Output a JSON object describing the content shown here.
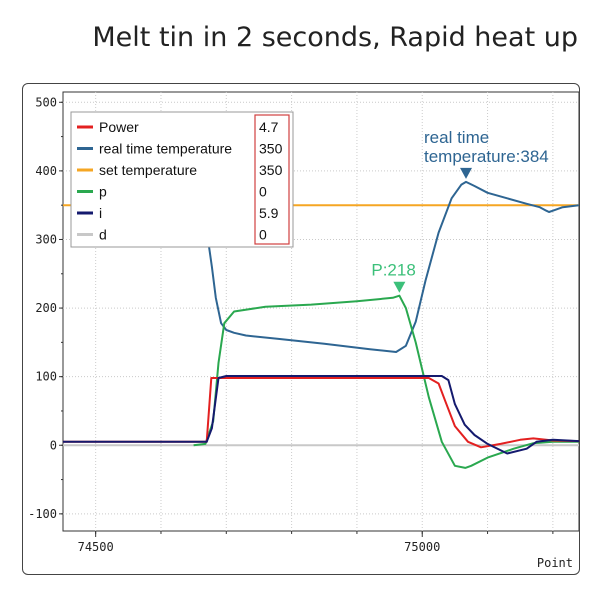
{
  "headline": "Melt tin in 2 seconds,  Rapid heat up",
  "chart_data": {
    "type": "line",
    "xlabel": "Point",
    "ylabel": "",
    "xlim": [
      74450,
      75240
    ],
    "ylim": [
      -125,
      515
    ],
    "x_ticks": [
      "74500",
      "75000"
    ],
    "y_ticks": [
      "500",
      "400",
      "300",
      "200",
      "100",
      "0",
      "-100"
    ],
    "grid": true,
    "legend_position": "top-left",
    "legend": [
      {
        "name": "Power",
        "value": "4.7",
        "color": "#e32020"
      },
      {
        "name": "real time temperature",
        "value": "350",
        "color": "#2e6592"
      },
      {
        "name": "set temperature",
        "value": "350",
        "color": "#f5a623"
      },
      {
        "name": "p",
        "value": "0",
        "color": "#2aa84f"
      },
      {
        "name": "i",
        "value": "5.9",
        "color": "#141a6e"
      },
      {
        "name": "d",
        "value": "0",
        "color": "#c8c8c8"
      }
    ],
    "annotations": [
      {
        "label_lines": [
          "real time",
          "temperature:384"
        ],
        "x": 75067,
        "y": 384,
        "color": "#2e6592"
      },
      {
        "label_lines": [
          "P:218"
        ],
        "x": 74965,
        "y": 218,
        "color": "#3cc07a"
      }
    ],
    "series": [
      {
        "name": "real time temperature",
        "color": "#2e6592",
        "x": [
          74672,
          74678,
          74684,
          74692,
          74700,
          74712,
          74730,
          74780,
          74850,
          74920,
          74960,
          74975,
          74990,
          75005,
          75025,
          75045,
          75060,
          75067,
          75080,
          75100,
          75130,
          75160,
          75180,
          75190,
          75194,
          75200,
          75215,
          75240
        ],
        "y": [
          300,
          260,
          215,
          178,
          168,
          164,
          160,
          155,
          148,
          140,
          136,
          145,
          180,
          240,
          310,
          360,
          380,
          384,
          378,
          368,
          360,
          352,
          347,
          342,
          340,
          342,
          347,
          350
        ]
      },
      {
        "name": "set temperature",
        "color": "#f5a623",
        "x": [
          74450,
          75240
        ],
        "y": [
          350,
          350
        ]
      },
      {
        "name": "p",
        "color": "#2aa84f",
        "x": [
          74650,
          74668,
          74680,
          74688,
          74697,
          74712,
          74760,
          74830,
          74900,
          74955,
          74965,
          74975,
          74990,
          75010,
          75030,
          75050,
          75066,
          75075,
          75100,
          75140,
          75170,
          75200,
          75240
        ],
        "y": [
          0,
          2,
          35,
          120,
          178,
          195,
          202,
          205,
          210,
          215,
          218,
          200,
          150,
          70,
          5,
          -30,
          -33,
          -30,
          -18,
          -5,
          3,
          5,
          5
        ]
      },
      {
        "name": "Power",
        "color": "#e32020",
        "x": [
          74450,
          74670,
          74677,
          75010,
          75025,
          75035,
          75050,
          75070,
          75090,
          75120,
          75150,
          75170,
          75200,
          75240
        ],
        "y": [
          5,
          5,
          98,
          98,
          90,
          65,
          28,
          5,
          -3,
          2,
          8,
          10,
          7,
          6
        ]
      },
      {
        "name": "i",
        "color": "#141a6e",
        "x": [
          74450,
          74670,
          74678,
          74688,
          74700,
          74760,
          74880,
          75030,
          75040,
          75050,
          75065,
          75080,
          75100,
          75130,
          75160,
          75175,
          75200,
          75240
        ],
        "y": [
          5,
          5,
          25,
          98,
          101,
          101,
          101,
          101,
          95,
          60,
          30,
          15,
          2,
          -12,
          -5,
          5,
          8,
          6
        ]
      },
      {
        "name": "d",
        "color": "#c8c8c8",
        "x": [
          74450,
          75240
        ],
        "y": [
          0,
          0
        ]
      }
    ]
  }
}
